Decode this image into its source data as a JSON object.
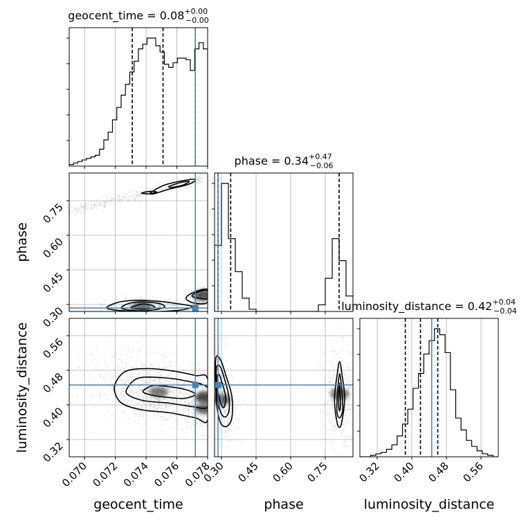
{
  "chart_data": {
    "type": "corner",
    "parameters": [
      "geocent_time",
      "phase",
      "luminosity_distance"
    ],
    "titles": {
      "geocent_time": {
        "name": "geocent_time",
        "median": "0.08",
        "plus": "+0.00",
        "minus": "−0.00"
      },
      "phase": {
        "name": "phase",
        "median": "0.34",
        "plus": "+0.47",
        "minus": "−0.06"
      },
      "luminosity_distance": {
        "name": "luminosity_distance",
        "median": "0.42",
        "plus": "+0.04",
        "minus": "−0.04"
      }
    },
    "axes": {
      "geocent_time": {
        "label": "geocent_time",
        "range": [
          0.069,
          0.078
        ],
        "ticks": [
          "0.070",
          "0.072",
          "0.074",
          "0.076",
          "0.078"
        ]
      },
      "phase": {
        "label": "phase",
        "range": [
          0.27,
          0.87
        ],
        "ticks": [
          "0.30",
          "0.45",
          "0.60",
          "0.75"
        ]
      },
      "luminosity_distance": {
        "label": "luminosity_distance",
        "range": [
          0.28,
          0.6
        ],
        "ticks": [
          "0.32",
          "0.40",
          "0.48",
          "0.56"
        ]
      }
    },
    "truths": {
      "geocent_time": 0.0772,
      "phase": 0.285,
      "luminosity_distance": 0.446
    },
    "quantiles": {
      "geocent_time": [
        0.0731,
        0.0751,
        0.0772
      ],
      "phase": [
        0.285,
        0.34,
        0.81
      ],
      "luminosity_distance": [
        0.385,
        0.42,
        0.46
      ]
    },
    "histograms": {
      "geocent_time": {
        "bin_edges_range": [
          0.069,
          0.078
        ],
        "counts": [
          1,
          2,
          3,
          4,
          5,
          6,
          7,
          11,
          17,
          22,
          30,
          38,
          46,
          53,
          61,
          68,
          76,
          79,
          83,
          83,
          78,
          74,
          66,
          64,
          67,
          70,
          70,
          69,
          62,
          76,
          80,
          76
        ]
      },
      "phase": {
        "bin_edges_range": [
          0.27,
          0.87
        ],
        "counts": [
          30,
          58,
          33,
          18,
          6,
          1,
          0,
          0,
          0,
          0,
          0,
          0,
          0,
          0,
          0,
          3,
          15,
          33,
          23,
          7
        ]
      },
      "luminosity_distance": {
        "bin_edges_range": [
          0.28,
          0.6
        ],
        "counts": [
          0,
          0,
          1,
          2,
          3,
          5,
          8,
          14,
          22,
          32,
          46,
          56,
          69,
          78,
          86,
          82,
          70,
          45,
          26,
          18,
          11,
          7,
          4,
          2,
          1,
          0
        ]
      }
    },
    "contours": {
      "phase__geocent_time": [
        {
          "points": [
            [
              0.073,
              0.285
            ],
            [
              0.0733,
              0.295
            ],
            [
              0.0738,
              0.302
            ],
            [
              0.0744,
              0.296
            ],
            [
              0.0745,
              0.286
            ],
            [
              0.0737,
              0.281
            ]
          ]
        },
        {
          "points": [
            [
              0.0724,
              0.283
            ],
            [
              0.0728,
              0.303
            ],
            [
              0.0736,
              0.311
            ],
            [
              0.0748,
              0.305
            ],
            [
              0.0752,
              0.289
            ],
            [
              0.0744,
              0.276
            ],
            [
              0.0734,
              0.273
            ]
          ]
        },
        {
          "points": [
            [
              0.0715,
              0.282
            ],
            [
              0.0721,
              0.308
            ],
            [
              0.0732,
              0.318
            ],
            [
              0.0748,
              0.314
            ],
            [
              0.0762,
              0.302
            ],
            [
              0.077,
              0.29
            ],
            [
              0.076,
              0.274
            ],
            [
              0.0736,
              0.269
            ]
          ]
        },
        {
          "points": [
            [
              0.0766,
              0.325
            ],
            [
              0.077,
              0.35
            ],
            [
              0.078,
              0.365
            ],
            [
              0.078,
              0.31
            ],
            [
              0.0772,
              0.305
            ]
          ]
        },
        {
          "points": [
            [
              0.077,
              0.335
            ],
            [
              0.0774,
              0.355
            ],
            [
              0.078,
              0.36
            ],
            [
              0.078,
              0.325
            ]
          ]
        },
        {
          "points": [
            [
              0.0743,
              0.785
            ],
            [
              0.0752,
              0.818
            ],
            [
              0.0765,
              0.838
            ],
            [
              0.0772,
              0.842
            ],
            [
              0.0768,
              0.822
            ],
            [
              0.0755,
              0.8
            ],
            [
              0.0745,
              0.78
            ]
          ]
        },
        {
          "points": [
            [
              0.0755,
              0.812
            ],
            [
              0.0762,
              0.828
            ],
            [
              0.0768,
              0.834
            ],
            [
              0.0764,
              0.818
            ],
            [
              0.0757,
              0.808
            ]
          ]
        },
        {
          "points": [
            [
              0.0737,
              0.783
            ],
            [
              0.0742,
              0.79
            ],
            [
              0.0747,
              0.788
            ],
            [
              0.0742,
              0.78
            ]
          ]
        }
      ],
      "luminosity_distance__geocent_time": [
        {
          "points": [
            [
              0.0738,
              0.432
            ],
            [
              0.0745,
              0.445
            ],
            [
              0.0755,
              0.442
            ],
            [
              0.0765,
              0.436
            ],
            [
              0.0772,
              0.425
            ],
            [
              0.0765,
              0.415
            ],
            [
              0.0752,
              0.418
            ],
            [
              0.0742,
              0.424
            ]
          ]
        },
        {
          "points": [
            [
              0.0728,
              0.44
            ],
            [
              0.0735,
              0.462
            ],
            [
              0.075,
              0.463
            ],
            [
              0.0765,
              0.456
            ],
            [
              0.078,
              0.44
            ],
            [
              0.078,
              0.395
            ],
            [
              0.077,
              0.396
            ],
            [
              0.0755,
              0.404
            ],
            [
              0.0738,
              0.41
            ],
            [
              0.0728,
              0.424
            ]
          ]
        },
        {
          "points": [
            [
              0.072,
              0.45
            ],
            [
              0.0727,
              0.478
            ],
            [
              0.0742,
              0.484
            ],
            [
              0.0758,
              0.478
            ],
            [
              0.0772,
              0.468
            ],
            [
              0.078,
              0.46
            ],
            [
              0.078,
              0.365
            ],
            [
              0.0772,
              0.37
            ],
            [
              0.0755,
              0.382
            ],
            [
              0.0738,
              0.388
            ],
            [
              0.0725,
              0.402
            ],
            [
              0.072,
              0.425
            ]
          ]
        }
      ],
      "luminosity_distance__phase": [
        {
          "points": [
            [
              0.28,
              0.465
            ],
            [
              0.29,
              0.47
            ],
            [
              0.3,
              0.455
            ],
            [
              0.318,
              0.42
            ],
            [
              0.312,
              0.395
            ],
            [
              0.3,
              0.4
            ],
            [
              0.285,
              0.43
            ]
          ]
        },
        {
          "points": [
            [
              0.278,
              0.485
            ],
            [
              0.295,
              0.488
            ],
            [
              0.312,
              0.462
            ],
            [
              0.332,
              0.42
            ],
            [
              0.332,
              0.385
            ],
            [
              0.315,
              0.372
            ],
            [
              0.295,
              0.385
            ],
            [
              0.28,
              0.425
            ]
          ]
        },
        {
          "points": [
            [
              0.275,
              0.505
            ],
            [
              0.295,
              0.505
            ],
            [
              0.318,
              0.47
            ],
            [
              0.345,
              0.42
            ],
            [
              0.345,
              0.37
            ],
            [
              0.322,
              0.35
            ],
            [
              0.295,
              0.36
            ],
            [
              0.278,
              0.41
            ]
          ]
        },
        {
          "points": [
            [
              0.808,
              0.402
            ],
            [
              0.812,
              0.45
            ],
            [
              0.816,
              0.402
            ],
            [
              0.812,
              0.386
            ]
          ]
        },
        {
          "points": [
            [
              0.8,
              0.392
            ],
            [
              0.812,
              0.472
            ],
            [
              0.826,
              0.396
            ],
            [
              0.812,
              0.37
            ]
          ]
        },
        {
          "points": [
            [
              0.79,
              0.415
            ],
            [
              0.802,
              0.472
            ],
            [
              0.812,
              0.5
            ],
            [
              0.822,
              0.472
            ],
            [
              0.834,
              0.415
            ],
            [
              0.822,
              0.362
            ],
            [
              0.812,
              0.348
            ],
            [
              0.8,
              0.362
            ]
          ]
        }
      ]
    },
    "density_cores": {
      "phase__geocent_time": [
        [
          0.0737,
          0.292,
          0.55
        ],
        [
          0.0777,
          0.34,
          0.65
        ]
      ],
      "luminosity_distance__geocent_time": [
        [
          0.0748,
          0.43,
          0.5
        ],
        [
          0.0778,
          0.418,
          0.7
        ],
        [
          0.0778,
          0.392,
          0.6
        ]
      ],
      "luminosity_distance__phase": [
        [
          0.298,
          0.412,
          0.6
        ],
        [
          0.812,
          0.425,
          0.5
        ]
      ]
    },
    "truth_color": "#4682b4",
    "grid": true
  }
}
